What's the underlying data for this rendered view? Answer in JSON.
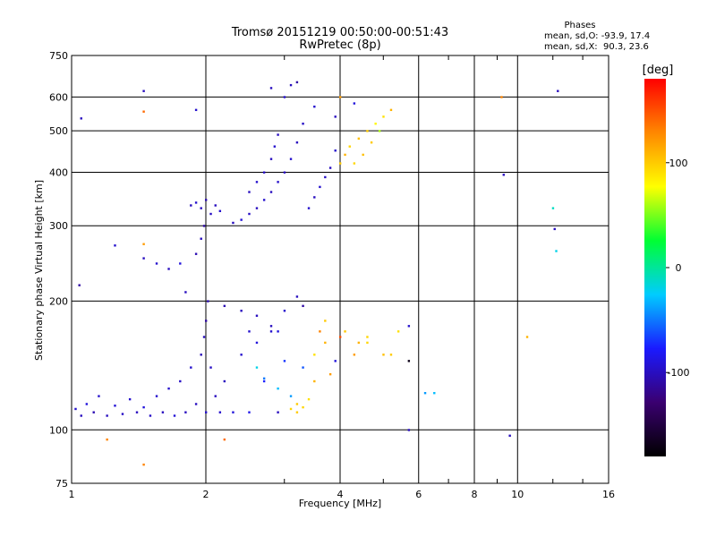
{
  "chart_data": {
    "type": "scatter",
    "title": "Tromsø 20151219 00:50:00-00:51:43",
    "subtitle": "RwPretec (8p)",
    "xlabel": "Frequency [MHz]",
    "ylabel": "Stationary phase Virtual Height [km]",
    "x_scale": "log",
    "y_scale": "log",
    "xlim": [
      1,
      16
    ],
    "ylim": [
      75,
      750
    ],
    "x_ticks": [
      1,
      2,
      4,
      6,
      8,
      10,
      16
    ],
    "y_ticks": [
      75,
      100,
      200,
      300,
      400,
      500,
      600,
      750
    ],
    "grid": true,
    "phases_box": {
      "title": "Phases",
      "line_o": "mean, sd,O: -93.9, 17.4",
      "line_x": "mean, sd,X:  90.3, 23.6"
    },
    "colorbar": {
      "label": "[deg]",
      "range": [
        -180,
        180
      ],
      "ticks": [
        100,
        0,
        -100
      ],
      "colors": [
        "#000000",
        "#3a0070",
        "#1a1aff",
        "#00ccff",
        "#00ff33",
        "#ffff00",
        "#ff8800",
        "#ff0000"
      ]
    },
    "series": [
      {
        "values": [
          {
            "f": 1.02,
            "h": 112,
            "p": -95
          },
          {
            "f": 1.05,
            "h": 108,
            "p": -100
          },
          {
            "f": 1.08,
            "h": 115,
            "p": -90
          },
          {
            "f": 1.12,
            "h": 110,
            "p": -105
          },
          {
            "f": 1.15,
            "h": 120,
            "p": -95
          },
          {
            "f": 1.2,
            "h": 108,
            "p": -100
          },
          {
            "f": 1.25,
            "h": 114,
            "p": -92
          },
          {
            "f": 1.3,
            "h": 109,
            "p": -98
          },
          {
            "f": 1.35,
            "h": 118,
            "p": -95
          },
          {
            "f": 1.4,
            "h": 110,
            "p": -100
          },
          {
            "f": 1.45,
            "h": 113,
            "p": -90
          },
          {
            "f": 1.5,
            "h": 108,
            "p": -97
          },
          {
            "f": 1.55,
            "h": 120,
            "p": -95
          },
          {
            "f": 1.6,
            "h": 110,
            "p": -100
          },
          {
            "f": 1.65,
            "h": 125,
            "p": -96
          },
          {
            "f": 1.7,
            "h": 108,
            "p": -92
          },
          {
            "f": 1.75,
            "h": 130,
            "p": -98
          },
          {
            "f": 1.8,
            "h": 110,
            "p": -100
          },
          {
            "f": 1.85,
            "h": 140,
            "p": -95
          },
          {
            "f": 1.9,
            "h": 115,
            "p": -100
          },
          {
            "f": 1.95,
            "h": 150,
            "p": -102
          },
          {
            "f": 2.0,
            "h": 110,
            "p": -95
          },
          {
            "f": 2.0,
            "h": 180,
            "p": -110
          },
          {
            "f": 2.02,
            "h": 200,
            "p": -105
          },
          {
            "f": 1.98,
            "h": 165,
            "p": -100
          },
          {
            "f": 2.05,
            "h": 140,
            "p": -98
          },
          {
            "f": 2.1,
            "h": 120,
            "p": -100
          },
          {
            "f": 2.15,
            "h": 110,
            "p": -95
          },
          {
            "f": 2.2,
            "h": 130,
            "p": -100
          },
          {
            "f": 2.3,
            "h": 110,
            "p": -90
          },
          {
            "f": 2.4,
            "h": 150,
            "p": -95
          },
          {
            "f": 2.5,
            "h": 110,
            "p": -85
          },
          {
            "f": 2.6,
            "h": 160,
            "p": -90
          },
          {
            "f": 2.7,
            "h": 130,
            "p": -75
          },
          {
            "f": 2.8,
            "h": 170,
            "p": -95
          },
          {
            "f": 2.9,
            "h": 110,
            "p": -100
          },
          {
            "f": 3.0,
            "h": 145,
            "p": -70
          },
          {
            "f": 3.1,
            "h": 112,
            "p": 95
          },
          {
            "f": 3.2,
            "h": 115,
            "p": 100
          },
          {
            "f": 3.3,
            "h": 140,
            "p": -60
          },
          {
            "f": 3.5,
            "h": 150,
            "p": 90
          },
          {
            "f": 3.7,
            "h": 160,
            "p": 110
          },
          {
            "f": 3.9,
            "h": 145,
            "p": -90
          },
          {
            "f": 4.1,
            "h": 170,
            "p": 100
          },
          {
            "f": 4.3,
            "h": 150,
            "p": 120
          },
          {
            "f": 4.6,
            "h": 160,
            "p": 95
          },
          {
            "f": 5.0,
            "h": 150,
            "p": 105
          },
          {
            "f": 5.4,
            "h": 170,
            "p": 90
          },
          {
            "f": 5.7,
            "h": 175,
            "p": -95
          },
          {
            "f": 5.7,
            "h": 145,
            "p": -170
          },
          {
            "f": 6.2,
            "h": 122,
            "p": -40
          },
          {
            "f": 6.5,
            "h": 122,
            "p": -30
          },
          {
            "f": 1.04,
            "h": 218,
            "p": -110
          },
          {
            "f": 1.25,
            "h": 270,
            "p": -95
          },
          {
            "f": 1.45,
            "h": 272,
            "p": 120
          },
          {
            "f": 1.45,
            "h": 252,
            "p": -100
          },
          {
            "f": 1.55,
            "h": 245,
            "p": -95
          },
          {
            "f": 1.65,
            "h": 238,
            "p": -100
          },
          {
            "f": 1.75,
            "h": 245,
            "p": -90
          },
          {
            "f": 1.9,
            "h": 258,
            "p": -105
          },
          {
            "f": 1.95,
            "h": 280,
            "p": -100
          },
          {
            "f": 1.98,
            "h": 300,
            "p": -110
          },
          {
            "f": 1.85,
            "h": 335,
            "p": -100
          },
          {
            "f": 1.9,
            "h": 340,
            "p": -95
          },
          {
            "f": 1.95,
            "h": 330,
            "p": -100
          },
          {
            "f": 2.0,
            "h": 345,
            "p": -105
          },
          {
            "f": 2.05,
            "h": 320,
            "p": -98
          },
          {
            "f": 2.1,
            "h": 335,
            "p": -100
          },
          {
            "f": 2.15,
            "h": 325,
            "p": -95
          },
          {
            "f": 2.3,
            "h": 305,
            "p": -100
          },
          {
            "f": 2.4,
            "h": 310,
            "p": -92
          },
          {
            "f": 2.5,
            "h": 320,
            "p": -98
          },
          {
            "f": 2.6,
            "h": 330,
            "p": -100
          },
          {
            "f": 2.7,
            "h": 345,
            "p": -95
          },
          {
            "f": 2.8,
            "h": 360,
            "p": -100
          },
          {
            "f": 2.9,
            "h": 380,
            "p": -96
          },
          {
            "f": 3.0,
            "h": 400,
            "p": -100
          },
          {
            "f": 3.1,
            "h": 430,
            "p": -95
          },
          {
            "f": 3.2,
            "h": 470,
            "p": -100
          },
          {
            "f": 3.3,
            "h": 520,
            "p": -98
          },
          {
            "f": 2.5,
            "h": 360,
            "p": -100
          },
          {
            "f": 2.6,
            "h": 380,
            "p": -95
          },
          {
            "f": 2.7,
            "h": 400,
            "p": -98
          },
          {
            "f": 2.8,
            "h": 430,
            "p": -100
          },
          {
            "f": 2.85,
            "h": 460,
            "p": -95
          },
          {
            "f": 2.9,
            "h": 490,
            "p": -100
          },
          {
            "f": 3.0,
            "h": 600,
            "p": -95
          },
          {
            "f": 3.1,
            "h": 640,
            "p": -100
          },
          {
            "f": 3.2,
            "h": 650,
            "p": -110
          },
          {
            "f": 2.8,
            "h": 630,
            "p": -100
          },
          {
            "f": 3.4,
            "h": 330,
            "p": -95
          },
          {
            "f": 3.5,
            "h": 350,
            "p": -100
          },
          {
            "f": 3.6,
            "h": 370,
            "p": -95
          },
          {
            "f": 3.7,
            "h": 390,
            "p": -98
          },
          {
            "f": 3.8,
            "h": 410,
            "p": -100
          },
          {
            "f": 3.9,
            "h": 450,
            "p": -95
          },
          {
            "f": 3.9,
            "h": 540,
            "p": -100
          },
          {
            "f": 3.5,
            "h": 570,
            "p": -95
          },
          {
            "f": 4.0,
            "h": 420,
            "p": 100
          },
          {
            "f": 4.1,
            "h": 440,
            "p": 110
          },
          {
            "f": 4.2,
            "h": 460,
            "p": 95
          },
          {
            "f": 4.4,
            "h": 480,
            "p": 105
          },
          {
            "f": 4.6,
            "h": 500,
            "p": 100
          },
          {
            "f": 4.8,
            "h": 520,
            "p": 80
          },
          {
            "f": 5.0,
            "h": 540,
            "p": 90
          },
          {
            "f": 5.2,
            "h": 560,
            "p": 110
          },
          {
            "f": 4.3,
            "h": 420,
            "p": 95
          },
          {
            "f": 4.5,
            "h": 440,
            "p": 105
          },
          {
            "f": 4.7,
            "h": 470,
            "p": 100
          },
          {
            "f": 4.9,
            "h": 500,
            "p": 60
          },
          {
            "f": 4.0,
            "h": 600,
            "p": 120
          },
          {
            "f": 4.3,
            "h": 580,
            "p": -90
          },
          {
            "f": 1.05,
            "h": 535,
            "p": -100
          },
          {
            "f": 1.45,
            "h": 620,
            "p": -100
          },
          {
            "f": 1.45,
            "h": 555,
            "p": 140
          },
          {
            "f": 1.9,
            "h": 560,
            "p": -95
          },
          {
            "f": 9.2,
            "h": 600,
            "p": 130
          },
          {
            "f": 9.3,
            "h": 395,
            "p": -100
          },
          {
            "f": 12.3,
            "h": 620,
            "p": -100
          },
          {
            "f": 12.0,
            "h": 330,
            "p": -10
          },
          {
            "f": 12.1,
            "h": 295,
            "p": -100
          },
          {
            "f": 12.2,
            "h": 262,
            "p": -20
          },
          {
            "f": 9.6,
            "h": 97,
            "p": -100
          },
          {
            "f": 5.7,
            "h": 100,
            "p": -100
          },
          {
            "f": 1.2,
            "h": 95,
            "p": 130
          },
          {
            "f": 2.2,
            "h": 95,
            "p": 140
          },
          {
            "f": 1.45,
            "h": 83,
            "p": 130
          },
          {
            "f": 10.5,
            "h": 165,
            "p": 110
          },
          {
            "f": 3.2,
            "h": 205,
            "p": -100
          },
          {
            "f": 3.3,
            "h": 195,
            "p": -110
          },
          {
            "f": 3.0,
            "h": 190,
            "p": -95
          },
          {
            "f": 2.8,
            "h": 175,
            "p": -100
          },
          {
            "f": 2.9,
            "h": 170,
            "p": -90
          },
          {
            "f": 2.6,
            "h": 185,
            "p": -100
          },
          {
            "f": 2.5,
            "h": 170,
            "p": -95
          },
          {
            "f": 2.4,
            "h": 190,
            "p": -100
          },
          {
            "f": 2.2,
            "h": 195,
            "p": -105
          },
          {
            "f": 1.8,
            "h": 210,
            "p": -100
          },
          {
            "f": 3.7,
            "h": 180,
            "p": 100
          },
          {
            "f": 3.6,
            "h": 170,
            "p": 130
          },
          {
            "f": 4.0,
            "h": 165,
            "p": 150
          },
          {
            "f": 4.4,
            "h": 160,
            "p": 110
          },
          {
            "f": 4.6,
            "h": 165,
            "p": 95
          },
          {
            "f": 5.2,
            "h": 150,
            "p": 100
          },
          {
            "f": 3.2,
            "h": 110,
            "p": 100
          },
          {
            "f": 3.3,
            "h": 113,
            "p": 95
          },
          {
            "f": 3.4,
            "h": 118,
            "p": 90
          },
          {
            "f": 3.1,
            "h": 120,
            "p": -40
          },
          {
            "f": 2.9,
            "h": 125,
            "p": -30
          },
          {
            "f": 2.7,
            "h": 132,
            "p": -50
          },
          {
            "f": 2.6,
            "h": 140,
            "p": -20
          },
          {
            "f": 3.5,
            "h": 130,
            "p": 110
          },
          {
            "f": 3.8,
            "h": 135,
            "p": 120
          }
        ]
      }
    ]
  }
}
